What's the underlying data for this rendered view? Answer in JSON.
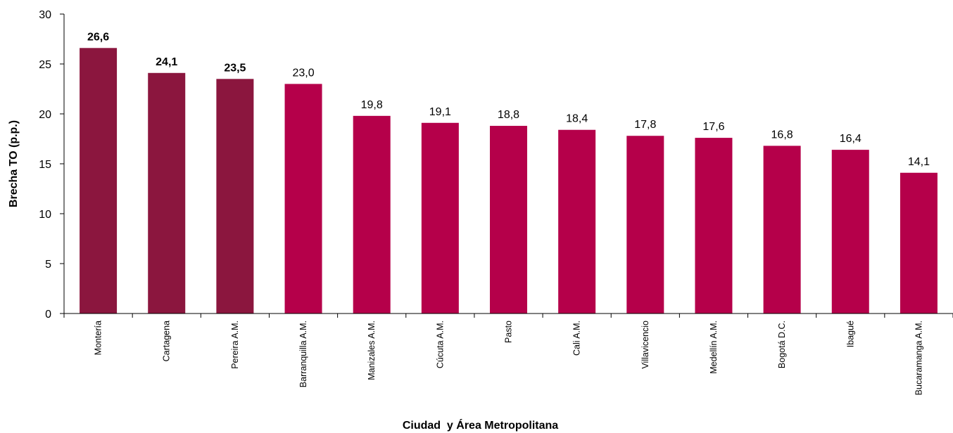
{
  "chart_data": {
    "type": "bar",
    "title": "",
    "xlabel": "Ciudad  y Área Metropolitana",
    "ylabel": "Brecha TO (p.p.)",
    "ylim": [
      0,
      30
    ],
    "yticks": [
      0,
      5,
      10,
      15,
      20,
      25,
      30
    ],
    "grid": false,
    "legend": "none",
    "categories": [
      "Montería",
      "Cartagena",
      "Pereira A.M.",
      "Barranquilla A.M.",
      "Manizales A.M.",
      "Cúcuta A.M.",
      "Pasto",
      "Cali A.M.",
      "Villavicencio",
      "Medellín A.M.",
      "Bogotá D.C.",
      "Ibagué",
      "Bucaramanga A.M."
    ],
    "values": [
      26.6,
      24.1,
      23.5,
      23.0,
      19.8,
      19.1,
      18.8,
      18.4,
      17.8,
      17.6,
      16.8,
      16.4,
      14.1
    ],
    "value_labels": [
      "26,6",
      "24,1",
      "23,5",
      "23,0",
      "19,8",
      "19,1",
      "18,8",
      "18,4",
      "17,8",
      "17,6",
      "16,8",
      "16,4",
      "14,1"
    ],
    "highlighted": [
      true,
      true,
      true,
      false,
      false,
      false,
      false,
      false,
      false,
      false,
      false,
      false,
      false
    ],
    "colors": {
      "highlight": "#8B163E",
      "default": "#B5004A",
      "axis": "#000000"
    }
  }
}
